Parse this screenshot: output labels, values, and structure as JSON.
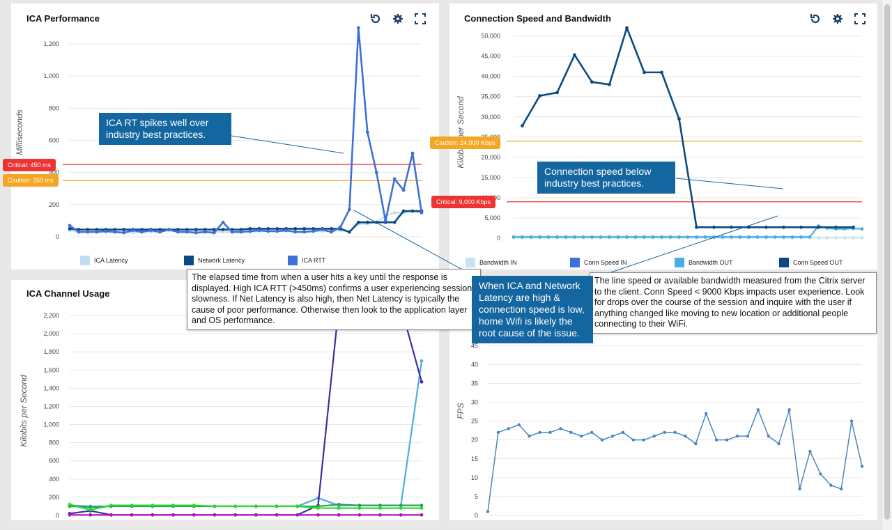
{
  "panels": {
    "ica_performance": {
      "title": "ICA Performance"
    },
    "connection_speed": {
      "title": "Connection Speed and Bandwidth"
    },
    "channel_usage": {
      "title": "ICA Channel Usage"
    },
    "fps": {
      "title": ""
    }
  },
  "toolbar": {
    "refresh_icon": "refresh-icon",
    "settings_icon": "gear-icon",
    "expand_icon": "expand-icon"
  },
  "thresholds": {
    "ica_critical": "Critical: 450 ms",
    "ica_caution": "Caution: 350 ms",
    "conn_caution": "Caution: 24,000 Kbps",
    "conn_critical": "Critical: 9,000 Kbps"
  },
  "legends": {
    "ica": [
      "ICA Latency",
      "Network Latency",
      "ICA RTT"
    ],
    "conn": [
      "Bandwidth IN",
      "Conn Speed IN",
      "Bandwidth OUT",
      "Conn Speed OUT"
    ]
  },
  "callouts": {
    "ica_spikes": "ICA RT spikes well over industry best practices.",
    "conn_below": "Connection speed below industry best practices.",
    "home_wifi": "When ICA and Network Latency are high & connection speed is low, home Wifi is likely the root cause of the issue.",
    "elapsed": "The elapsed time from when a user hits a key until the response is displayed. High ICA RTT (>450ms) confirms a user experiencing session slowness. If Net Latency is also high, then Net Latency is typically the cause of poor performance. Otherwise then look to the application layer and OS performance.",
    "line_speed": "The line speed or available bandwidth measured from the Citrix server to the client. Conn Speed < 9000 Kbps impacts user experience. Look for drops over the course of the session and inquire with the user if anything changed like moving to new location or additional people connecting to their WiFi."
  },
  "colors": {
    "ica_latency": "#bfdff0",
    "network_latency": "#0b4a80",
    "ica_rtt": "#3f6fd8",
    "bandwidth_in": "#c8e3f2",
    "conn_speed_in": "#3f6fd8",
    "bandwidth_out": "#4aaee0",
    "conn_speed_out": "#0b4a80",
    "critical": "#ee3333",
    "caution": "#f5a623",
    "callout_blue": "#1466a0",
    "fps_line": "#4a86c0"
  },
  "chart_data": [
    {
      "type": "line",
      "title": "ICA Performance",
      "ylabel": "Milliseconds",
      "ylim": [
        0,
        1300
      ],
      "yticks": [
        "0",
        "200",
        "400",
        "600",
        "800",
        "1,000",
        "1,200"
      ],
      "ytick_values": [
        0,
        200,
        400,
        600,
        800,
        1000,
        1200
      ],
      "grid": true,
      "legend_position": "bottom",
      "thresholds": [
        {
          "label": "Critical: 450 ms",
          "value": 450
        },
        {
          "label": "Caution: 350 ms",
          "value": 350
        }
      ],
      "series": [
        {
          "name": "ICA Latency",
          "values": [
            40,
            30,
            30,
            30,
            30,
            30,
            30,
            25,
            30,
            30,
            30,
            40,
            30,
            30,
            30,
            30,
            30,
            30,
            30,
            30,
            30,
            35,
            35,
            35,
            35,
            35,
            35,
            35,
            35,
            35,
            40,
            30,
            80,
            80,
            90,
            130,
            150,
            150,
            160,
            150
          ]
        },
        {
          "name": "Network Latency",
          "values": [
            50,
            45,
            45,
            45,
            45,
            45,
            45,
            45,
            45,
            45,
            45,
            45,
            45,
            45,
            45,
            45,
            45,
            45,
            45,
            45,
            50,
            50,
            50,
            50,
            50,
            50,
            50,
            50,
            50,
            50,
            50,
            30,
            90,
            90,
            90,
            90,
            90,
            160,
            160,
            160
          ]
        },
        {
          "name": "ICA RTT",
          "values": [
            70,
            30,
            30,
            30,
            35,
            30,
            25,
            40,
            30,
            40,
            30,
            45,
            30,
            30,
            25,
            30,
            25,
            90,
            30,
            30,
            35,
            40,
            35,
            35,
            40,
            30,
            30,
            35,
            45,
            30,
            60,
            170,
            1310,
            650,
            400,
            100,
            360,
            290,
            520,
            150
          ]
        }
      ]
    },
    {
      "type": "line",
      "title": "Connection Speed and Bandwidth",
      "ylabel": "Kilobits per Second",
      "ylim": [
        0,
        52000
      ],
      "yticks": [
        "0",
        "5,000",
        "10,000",
        "15,000",
        "20,000",
        "25,000",
        "30,000",
        "35,000",
        "40,000",
        "45,000",
        "50,000"
      ],
      "ytick_values": [
        0,
        5000,
        10000,
        15000,
        20000,
        25000,
        30000,
        35000,
        40000,
        45000,
        50000
      ],
      "grid": true,
      "legend_position": "bottom",
      "thresholds": [
        {
          "label": "Caution: 24,000 Kbps",
          "value": 24000
        },
        {
          "label": "Critical: 9,000 Kbps",
          "value": 9000
        }
      ],
      "series": [
        {
          "name": "Bandwidth IN",
          "values": [
            100,
            100,
            100,
            100,
            100,
            100,
            100,
            100,
            100,
            100,
            100,
            100,
            100,
            100,
            100,
            100,
            100,
            100,
            100,
            100,
            100,
            100,
            100,
            100,
            100,
            100,
            100,
            100,
            100,
            100,
            100,
            100,
            100,
            100,
            100,
            100,
            100,
            100,
            100,
            100,
            100
          ]
        },
        {
          "name": "Conn Speed IN",
          "values": [
            null,
            null,
            null,
            null,
            null,
            null,
            null,
            null,
            null,
            null,
            null,
            null,
            null,
            null,
            null,
            null,
            null,
            null,
            null,
            null,
            null,
            null,
            null,
            null,
            null,
            null,
            null,
            null,
            null,
            null,
            null,
            null,
            null,
            null,
            null,
            null,
            null,
            null,
            null,
            null,
            null
          ]
        },
        {
          "name": "Bandwidth OUT",
          "values": [
            300,
            300,
            300,
            300,
            300,
            300,
            300,
            300,
            300,
            300,
            300,
            300,
            300,
            300,
            300,
            300,
            300,
            300,
            300,
            300,
            300,
            300,
            300,
            300,
            300,
            300,
            300,
            300,
            300,
            300,
            300,
            300,
            300,
            300,
            300,
            3000,
            2500,
            2300,
            2300,
            2400,
            2300
          ]
        },
        {
          "name": "Conn Speed OUT",
          "x_index": [
            1,
            3,
            5,
            7,
            9,
            11,
            13,
            15,
            17,
            19,
            21,
            23,
            25,
            27,
            29,
            31,
            33,
            35,
            37,
            39
          ],
          "values": [
            27800,
            35200,
            36000,
            45300,
            38600,
            38000,
            53000,
            41000,
            41000,
            29500,
            2700,
            2700,
            2700,
            2700,
            2700,
            2700,
            2700,
            2700,
            2700,
            2700
          ]
        }
      ]
    },
    {
      "type": "line",
      "title": "ICA Channel Usage",
      "ylabel": "Kilobits per Second",
      "ylim": [
        0,
        2300
      ],
      "yticks": [
        "0",
        "200",
        "400",
        "600",
        "800",
        "1,000",
        "1,200",
        "1,400",
        "1,600",
        "1,800",
        "2,000",
        "2,200"
      ],
      "ytick_values": [
        0,
        200,
        400,
        600,
        800,
        1000,
        1200,
        1400,
        1600,
        1800,
        2000,
        2200
      ],
      "grid": true,
      "series": [
        {
          "color": "#4aaee0",
          "values": [
            110,
            100,
            100,
            100,
            100,
            100,
            100,
            100,
            100,
            100,
            100,
            100,
            190,
            110,
            110,
            110,
            110,
            1700
          ]
        },
        {
          "color": "#3a2fa0",
          "values": [
            20,
            50,
            5,
            5,
            5,
            5,
            5,
            5,
            5,
            5,
            5,
            5,
            110,
            2300,
            2300,
            2300,
            2300,
            1470
          ]
        },
        {
          "color": "#2a9d5a",
          "values": [
            100,
            90,
            100,
            100,
            100,
            100,
            100,
            100,
            100,
            100,
            100,
            100,
            100,
            120,
            110,
            110,
            110,
            110
          ]
        },
        {
          "color": "#22dd22",
          "values": [
            120,
            60,
            110,
            110,
            110,
            110,
            110,
            100,
            100,
            100,
            100,
            100,
            80,
            80,
            80,
            80,
            80,
            80
          ]
        },
        {
          "color": "#b010c0",
          "values": [
            5,
            5,
            5,
            5,
            5,
            5,
            5,
            5,
            5,
            5,
            5,
            5,
            5,
            5,
            5,
            5,
            5,
            5
          ]
        }
      ]
    },
    {
      "type": "line",
      "ylabel": "FPS",
      "ylim": [
        0,
        48
      ],
      "yticks": [
        "0",
        "5",
        "10",
        "15",
        "20",
        "25",
        "30",
        "35",
        "40",
        "45"
      ],
      "ytick_values": [
        0,
        5,
        10,
        15,
        20,
        25,
        30,
        35,
        40,
        45
      ],
      "grid": true,
      "series": [
        {
          "values": [
            1,
            22,
            23,
            24,
            21,
            22,
            22,
            23,
            22,
            21,
            22,
            20,
            21,
            22,
            20,
            20,
            21,
            22,
            22,
            21,
            19,
            27,
            20,
            20,
            21,
            21,
            28,
            21,
            19,
            28,
            7,
            17,
            11,
            8,
            7,
            25,
            13
          ]
        }
      ]
    }
  ]
}
